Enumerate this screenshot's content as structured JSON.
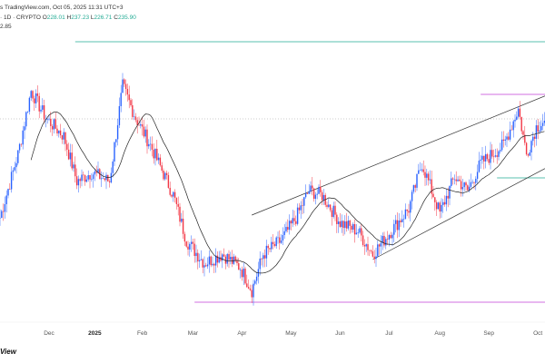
{
  "header": {
    "source": "s TradingView.com, Oct 05, 2025 11:31 UTC+3",
    "symbol": "· 1D · CRYPTO",
    "open_label": "O",
    "open": "228.01",
    "high_label": "H",
    "high": "237.23",
    "low_label": "L",
    "low": "226.71",
    "close_label": "C",
    "close": "235.90",
    "indicator": "2.85"
  },
  "logo": "View",
  "colors": {
    "up": "#2962ff",
    "down": "#f23645",
    "ma": "#222222",
    "cyan": "#22ab94",
    "magenta": "#c13fd6",
    "channel": "#333333"
  },
  "chart_data": {
    "type": "candlestick",
    "x_ticks": [
      {
        "label": "Dec",
        "day": 30,
        "bold": false
      },
      {
        "label": "2025",
        "day": 58,
        "bold": true
      },
      {
        "label": "Feb",
        "day": 87,
        "bold": false
      },
      {
        "label": "Mar",
        "day": 118,
        "bold": false
      },
      {
        "label": "Apr",
        "day": 148,
        "bold": false
      },
      {
        "label": "May",
        "day": 178,
        "bold": false
      },
      {
        "label": "Jun",
        "day": 208,
        "bold": false
      },
      {
        "label": "Jul",
        "day": 238,
        "bold": false
      },
      {
        "label": "Aug",
        "day": 269,
        "bold": false
      },
      {
        "label": "Sep",
        "day": 299,
        "bold": false
      },
      {
        "label": "Oct",
        "day": 329,
        "bold": false
      }
    ],
    "close_keypoints": [
      [
        0,
        182.4
      ],
      [
        11,
        217.4
      ],
      [
        19,
        252.4
      ],
      [
        28,
        237.4
      ],
      [
        39,
        227.4
      ],
      [
        47,
        202.4
      ],
      [
        56,
        207.4
      ],
      [
        67,
        202.4
      ],
      [
        75,
        254.9
      ],
      [
        83,
        237.4
      ],
      [
        92,
        222.4
      ],
      [
        106,
        194.9
      ],
      [
        114,
        169.9
      ],
      [
        125,
        157.4
      ],
      [
        136,
        162.4
      ],
      [
        147,
        154.9
      ],
      [
        154,
        142.4
      ],
      [
        161,
        162.4
      ],
      [
        172,
        169.9
      ],
      [
        181,
        182.4
      ],
      [
        189,
        197.4
      ],
      [
        197,
        194.9
      ],
      [
        208,
        179.9
      ],
      [
        219,
        174.9
      ],
      [
        228,
        162.4
      ],
      [
        239,
        174.9
      ],
      [
        250,
        187.4
      ],
      [
        258,
        212.4
      ],
      [
        269,
        184.9
      ],
      [
        278,
        204.9
      ],
      [
        286,
        197.4
      ],
      [
        294,
        212.4
      ],
      [
        308,
        222.4
      ],
      [
        317,
        242.4
      ],
      [
        322,
        217.4
      ],
      [
        328,
        232.4
      ],
      [
        333,
        235.9
      ]
    ],
    "moving_average_period": 20,
    "price_range": [
      102.4,
      302.4
    ],
    "horizontal_levels": [
      {
        "price": 279.4,
        "color": "cyan",
        "from_day": 46
      },
      {
        "price": 250.4,
        "color": "magenta",
        "from_day": 294
      },
      {
        "price": 135.9,
        "color": "magenta",
        "from_day": 119
      },
      {
        "price": 204.4,
        "color": "cyan",
        "from_day": 304
      },
      {
        "price": 236.9,
        "color": "gray-dotted",
        "from_day": 0
      }
    ],
    "channel_lines": [
      {
        "from": [
          154,
          183.9
        ],
        "to": [
          333,
          249.4
        ]
      },
      {
        "from": [
          228,
          159.4
        ],
        "to": [
          333,
          209.4
        ]
      }
    ]
  }
}
